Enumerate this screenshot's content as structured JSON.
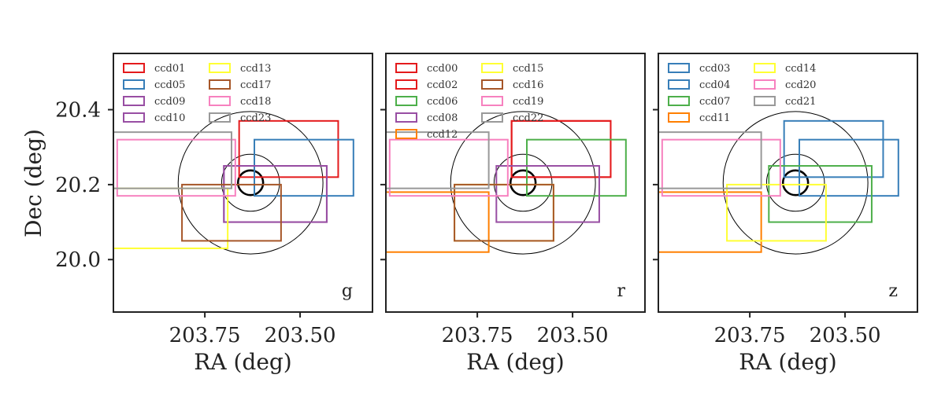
{
  "chart_data": {
    "type": "line",
    "shared_axes": {
      "xlabel": "RA (deg)",
      "ylabel": "Dec (deg)",
      "xlim": [
        203.99,
        203.31
      ],
      "ylim": [
        19.86,
        20.55
      ],
      "x_inverted": true,
      "xticks": [
        203.75,
        203.5
      ],
      "xtick_labels": [
        "203.75",
        "203.50"
      ],
      "yticks": [
        20.0,
        20.2,
        20.4
      ],
      "ytick_labels": [
        "20.0",
        "20.2",
        "20.4"
      ]
    },
    "circles": {
      "center": {
        "ra": 203.63,
        "dec": 20.205
      },
      "radii_deg": [
        0.19,
        0.076,
        0.033
      ]
    },
    "panels": [
      {
        "band": "g",
        "legend_placement": "upper-left",
        "footprints": [
          {
            "name": "ccd01",
            "color": "#e41a1c",
            "ra_min": 203.4,
            "ra_max": 203.66,
            "dec_min": 20.22,
            "dec_max": 20.37
          },
          {
            "name": "ccd05",
            "color": "#377eb8",
            "ra_min": 203.36,
            "ra_max": 203.62,
            "dec_min": 20.17,
            "dec_max": 20.32
          },
          {
            "name": "ccd09",
            "color": "#984ea3",
            "ra_min": 203.43,
            "ra_max": 203.7,
            "dec_min": 20.1,
            "dec_max": 20.25
          },
          {
            "name": "ccd10",
            "color": "#984ea3",
            "ra_min": 203.43,
            "ra_max": 203.7,
            "dec_min": 20.1,
            "dec_max": 20.25
          },
          {
            "name": "ccd13",
            "color": "#ffff33",
            "ra_min": 203.69,
            "ra_max": 203.99,
            "dec_min": 20.03,
            "dec_max": 20.19
          },
          {
            "name": "ccd17",
            "color": "#a65628",
            "ra_min": 203.55,
            "ra_max": 203.81,
            "dec_min": 20.05,
            "dec_max": 20.2
          },
          {
            "name": "ccd18",
            "color": "#f781bf",
            "ra_min": 203.67,
            "ra_max": 203.98,
            "dec_min": 20.17,
            "dec_max": 20.32
          },
          {
            "name": "ccd23",
            "color": "#999999",
            "ra_min": 203.68,
            "ra_max": 203.99,
            "dec_min": 20.19,
            "dec_max": 20.34
          }
        ]
      },
      {
        "band": "r",
        "legend_placement": "upper-left",
        "footprints": [
          {
            "name": "ccd00",
            "color": "#e41a1c",
            "ra_min": 203.4,
            "ra_max": 203.66,
            "dec_min": 20.22,
            "dec_max": 20.37
          },
          {
            "name": "ccd02",
            "color": "#e41a1c",
            "ra_min": 203.4,
            "ra_max": 203.66,
            "dec_min": 20.22,
            "dec_max": 20.37
          },
          {
            "name": "ccd06",
            "color": "#4daf4a",
            "ra_min": 203.36,
            "ra_max": 203.62,
            "dec_min": 20.17,
            "dec_max": 20.32
          },
          {
            "name": "ccd08",
            "color": "#984ea3",
            "ra_min": 203.43,
            "ra_max": 203.7,
            "dec_min": 20.1,
            "dec_max": 20.25
          },
          {
            "name": "ccd12",
            "color": "#ff7f00",
            "ra_min": 203.72,
            "ra_max": 203.99,
            "dec_min": 20.02,
            "dec_max": 20.18
          },
          {
            "name": "ccd15",
            "color": "#ffff33",
            "ra_min": 203.55,
            "ra_max": 203.81,
            "dec_min": 20.05,
            "dec_max": 20.2
          },
          {
            "name": "ccd16",
            "color": "#a65628",
            "ra_min": 203.55,
            "ra_max": 203.81,
            "dec_min": 20.05,
            "dec_max": 20.2
          },
          {
            "name": "ccd19",
            "color": "#f781bf",
            "ra_min": 203.67,
            "ra_max": 203.98,
            "dec_min": 20.17,
            "dec_max": 20.32
          },
          {
            "name": "ccd22",
            "color": "#999999",
            "ra_min": 203.72,
            "ra_max": 203.99,
            "dec_min": 20.19,
            "dec_max": 20.34
          }
        ]
      },
      {
        "band": "z",
        "legend_placement": "upper-left",
        "footprints": [
          {
            "name": "ccd03",
            "color": "#377eb8",
            "ra_min": 203.4,
            "ra_max": 203.66,
            "dec_min": 20.22,
            "dec_max": 20.37
          },
          {
            "name": "ccd04",
            "color": "#377eb8",
            "ra_min": 203.36,
            "ra_max": 203.62,
            "dec_min": 20.17,
            "dec_max": 20.32
          },
          {
            "name": "ccd07",
            "color": "#4daf4a",
            "ra_min": 203.43,
            "ra_max": 203.7,
            "dec_min": 20.1,
            "dec_max": 20.25
          },
          {
            "name": "ccd11",
            "color": "#ff7f00",
            "ra_min": 203.72,
            "ra_max": 203.99,
            "dec_min": 20.02,
            "dec_max": 20.18
          },
          {
            "name": "ccd14",
            "color": "#ffff33",
            "ra_min": 203.55,
            "ra_max": 203.81,
            "dec_min": 20.05,
            "dec_max": 20.2
          },
          {
            "name": "ccd20",
            "color": "#f781bf",
            "ra_min": 203.67,
            "ra_max": 203.98,
            "dec_min": 20.17,
            "dec_max": 20.32
          },
          {
            "name": "ccd21",
            "color": "#999999",
            "ra_min": 203.72,
            "ra_max": 203.99,
            "dec_min": 20.19,
            "dec_max": 20.34
          }
        ]
      }
    ]
  }
}
